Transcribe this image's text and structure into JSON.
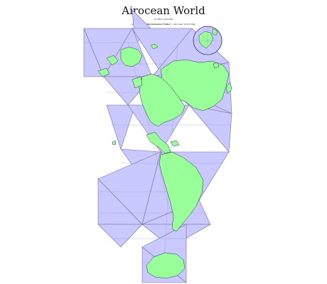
{
  "title": "Airocean World",
  "byline": "by Bruce Worrall",
  "subline_prefix": "on the web at",
  "subline_link": "Buckminster Fuller",
  "subline_suffix": "'s Airocean World Map",
  "colors": {
    "ocean": "#c9c9ff",
    "land": "#99ff99",
    "border": "#2b2b5a"
  }
}
